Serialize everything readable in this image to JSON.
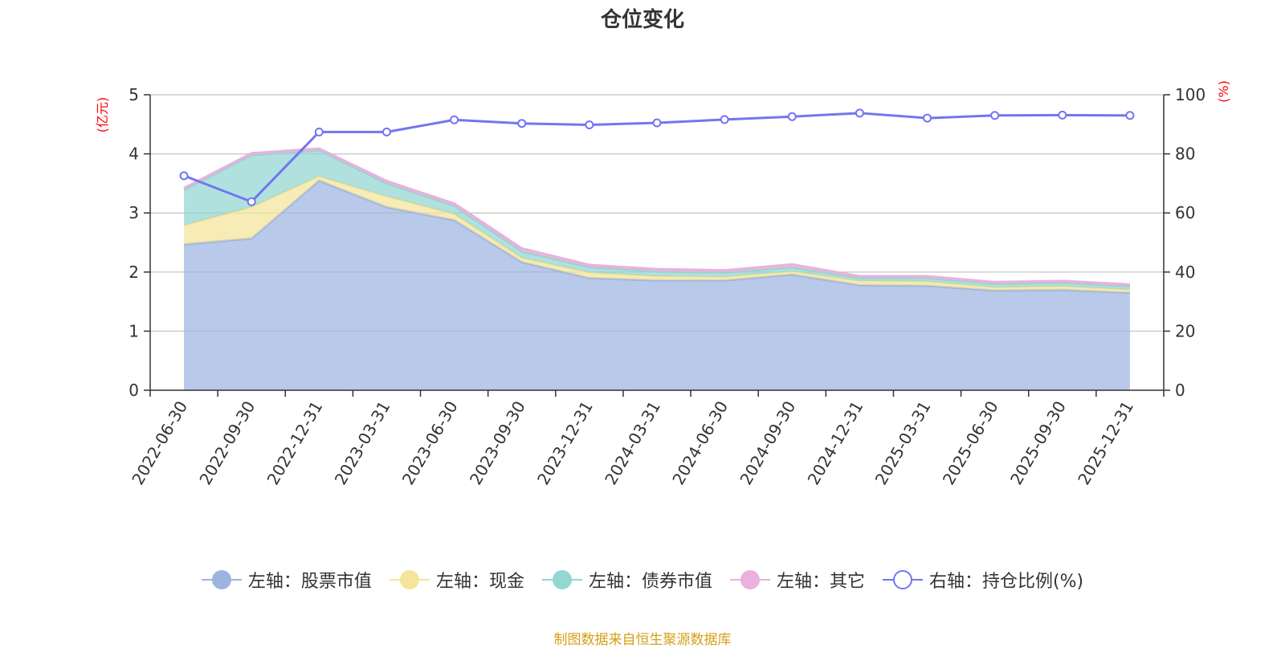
{
  "chart_data": {
    "type": "area",
    "title": "仓位变化",
    "categories": [
      "2022-06-30",
      "2022-09-30",
      "2022-12-31",
      "2023-03-31",
      "2023-06-30",
      "2023-09-30",
      "2023-12-31",
      "2024-03-31",
      "2024-06-30",
      "2024-09-30",
      "2024-12-31",
      "2025-03-31",
      "2025-06-30",
      "2025-09-30",
      "2025-12-31"
    ],
    "left_axis": {
      "unit": "(亿元)",
      "ylim": [
        0,
        5
      ],
      "ticks": [
        "0",
        "1",
        "2",
        "3",
        "4",
        "5"
      ]
    },
    "right_axis": {
      "unit": "(%)",
      "ylim": [
        0,
        100
      ],
      "ticks": [
        "0",
        "20",
        "40",
        "60",
        "80",
        "100"
      ]
    },
    "stacked": true,
    "series": [
      {
        "name": "左轴：股票市值",
        "axis": "left",
        "color": "#9db4e0",
        "values": [
          2.47,
          2.57,
          3.55,
          3.1,
          2.88,
          2.17,
          1.9,
          1.86,
          1.86,
          1.96,
          1.78,
          1.77,
          1.69,
          1.7,
          1.65
        ]
      },
      {
        "name": "左轴：现金",
        "axis": "left",
        "color": "#f5e49a",
        "values": [
          0.32,
          0.53,
          0.07,
          0.18,
          0.1,
          0.07,
          0.09,
          0.07,
          0.06,
          0.05,
          0.07,
          0.07,
          0.05,
          0.06,
          0.05
        ]
      },
      {
        "name": "左轴：债券市值",
        "axis": "left",
        "color": "#93d6d3",
        "values": [
          0.6,
          0.88,
          0.44,
          0.22,
          0.14,
          0.11,
          0.09,
          0.08,
          0.07,
          0.07,
          0.05,
          0.06,
          0.06,
          0.06,
          0.06
        ]
      },
      {
        "name": "左轴：其它",
        "axis": "left",
        "color": "#e8b2dc",
        "values": [
          0.03,
          0.03,
          0.03,
          0.04,
          0.04,
          0.05,
          0.04,
          0.04,
          0.04,
          0.05,
          0.03,
          0.03,
          0.03,
          0.03,
          0.03
        ]
      },
      {
        "name": "右轴：持仓比例(%)",
        "axis": "right",
        "type": "line",
        "color": "#7276f0",
        "values": [
          72.6,
          63.8,
          87.4,
          87.4,
          91.5,
          90.3,
          89.8,
          90.5,
          91.6,
          92.6,
          93.8,
          92.1,
          93.0,
          93.1,
          93.0
        ]
      }
    ]
  },
  "source": "制图数据来自恒生聚源数据库"
}
